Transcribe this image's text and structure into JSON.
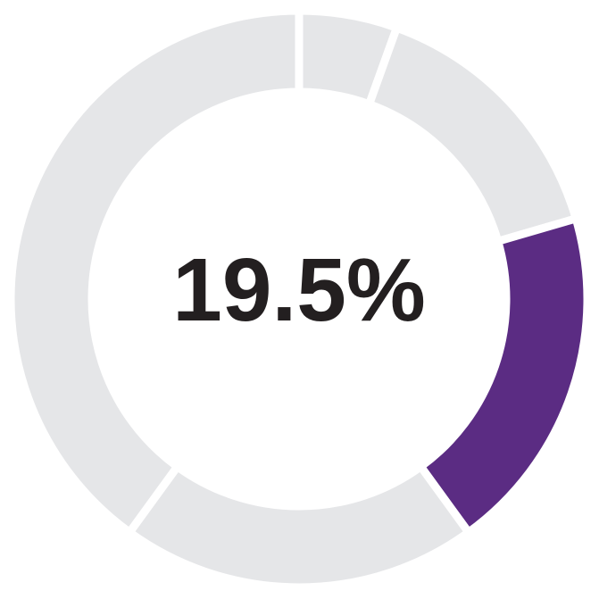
{
  "chart_data": {
    "type": "donut",
    "center_text": "19.5%",
    "values": [
      5.5,
      15,
      19.5,
      20,
      40
    ],
    "colors": [
      "#e5e6e8",
      "#e5e6e8",
      "#5b2c83",
      "#e5e6e8",
      "#e5e6e8"
    ]
  }
}
